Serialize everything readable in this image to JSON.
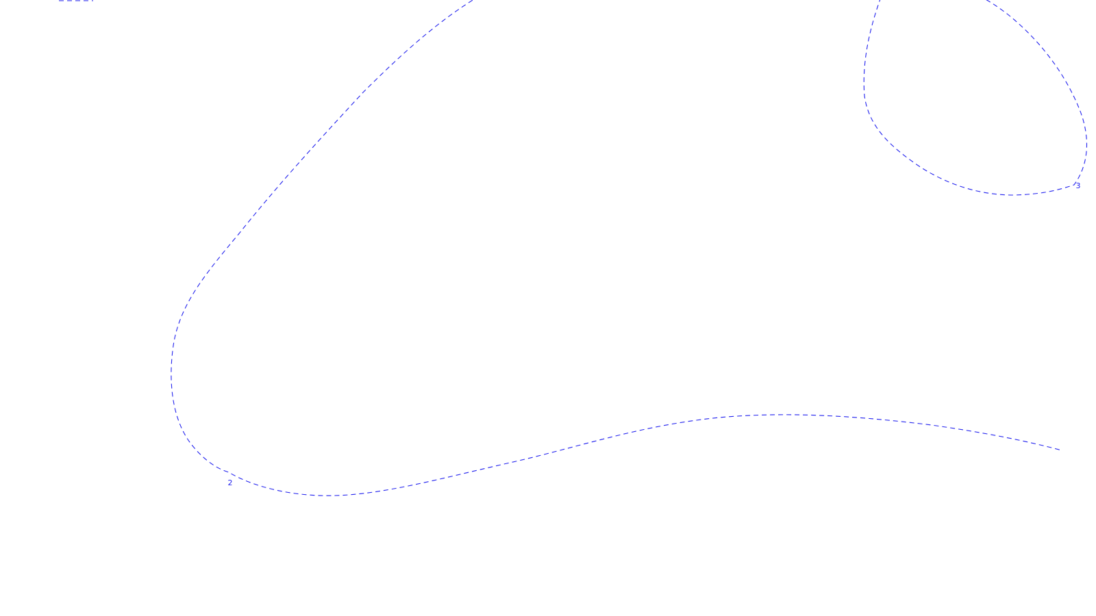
{
  "map": {
    "line_color": "#2222ee",
    "line_style": "dashed",
    "labels": {
      "contour_2": "2",
      "contour_3": "3"
    }
  }
}
